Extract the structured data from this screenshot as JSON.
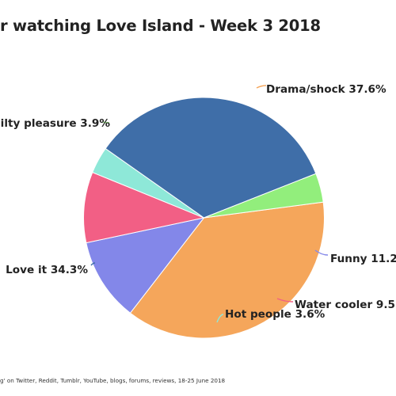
{
  "title": "r watching Love Island - Week 3 2018",
  "footer": "g' on Twitter, Reddit, Tumblr, YouTube, blogs, forums, reviews, 18-25 June 2018",
  "chart_data": {
    "type": "pie",
    "title": "r watching Love Island - Week 3 2018",
    "slices": [
      {
        "label": "Drama/shock 37.6%",
        "value": 37.6,
        "color": "#f5a65b"
      },
      {
        "label": "Funny 11.2",
        "value": 11.2,
        "color": "#8387e9"
      },
      {
        "label": "Water cooler 9.5",
        "value": 9.5,
        "color": "#f25f85"
      },
      {
        "label": "Hot people 3.6%",
        "value": 3.6,
        "color": "#8ee8d8"
      },
      {
        "label": "Love it 34.3%",
        "value": 34.3,
        "color": "#3f6ea8"
      },
      {
        "label": "ilty pleasure 3.9%",
        "value": 3.9,
        "color": "#92ee7c"
      }
    ]
  }
}
